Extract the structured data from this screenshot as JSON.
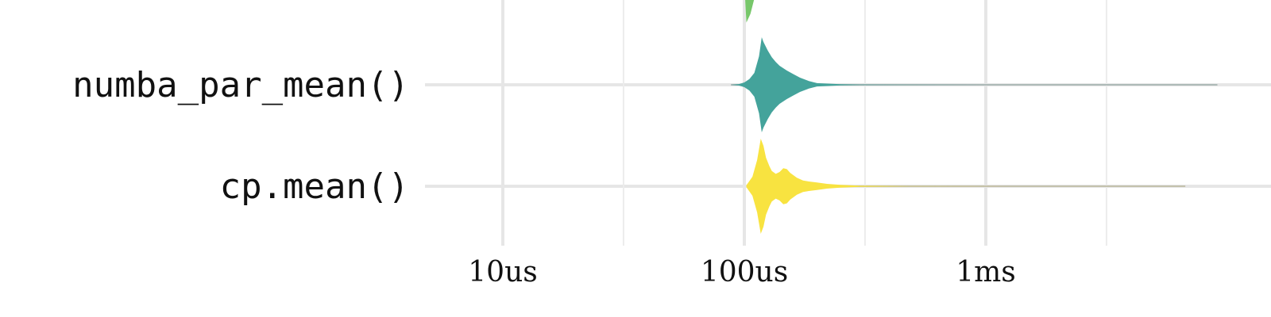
{
  "chart_data": {
    "type": "violin",
    "x_scale": "log",
    "x_unit": "s",
    "xlim": [
      3e-06,
      0.0001
    ],
    "x_ticks": [
      {
        "value": 1e-05,
        "label": "10us"
      },
      {
        "value": 0.0001,
        "label": "100us"
      },
      {
        "value": 0.001,
        "label": "1ms"
      }
    ],
    "x_minor_ticks": [
      3.16e-05,
      0.000316,
      0.00316
    ],
    "grid": true,
    "categories": [
      {
        "label": "numba_par_mean()",
        "color": "#44a39b",
        "min": 8.8e-05,
        "max": 0.0091,
        "density": [
          [
            8.8e-05,
            0.002
          ],
          [
            9.5e-05,
            0.015
          ],
          [
            0.0001,
            0.05
          ],
          [
            0.000105,
            0.12
          ],
          [
            0.00011,
            0.25
          ],
          [
            0.000115,
            0.6
          ],
          [
            0.000118,
            1.0
          ],
          [
            0.00012,
            0.9
          ],
          [
            0.000125,
            0.72
          ],
          [
            0.00013,
            0.58
          ],
          [
            0.000135,
            0.48
          ],
          [
            0.00014,
            0.4
          ],
          [
            0.00015,
            0.3
          ],
          [
            0.00016,
            0.22
          ],
          [
            0.00017,
            0.15
          ],
          [
            0.000185,
            0.08
          ],
          [
            0.0002,
            0.035
          ],
          [
            0.00025,
            0.012
          ],
          [
            0.0003,
            0.006
          ],
          [
            0.0005,
            0.003
          ],
          [
            0.001,
            0.002
          ],
          [
            0.003,
            0.0015
          ],
          [
            0.0091,
            0.001
          ]
        ]
      },
      {
        "label": "cp.mean()",
        "color": "#f8e340",
        "min": 0.000102,
        "max": 0.0067,
        "density": [
          [
            0.000102,
            0.02
          ],
          [
            0.000108,
            0.2
          ],
          [
            0.000113,
            0.55
          ],
          [
            0.000117,
            1.0
          ],
          [
            0.00012,
            0.85
          ],
          [
            0.000123,
            0.6
          ],
          [
            0.000127,
            0.42
          ],
          [
            0.00013,
            0.32
          ],
          [
            0.000135,
            0.26
          ],
          [
            0.00014,
            0.3
          ],
          [
            0.000145,
            0.38
          ],
          [
            0.00015,
            0.36
          ],
          [
            0.000155,
            0.28
          ],
          [
            0.000165,
            0.18
          ],
          [
            0.000175,
            0.12
          ],
          [
            0.000185,
            0.1
          ],
          [
            0.0002,
            0.08
          ],
          [
            0.00022,
            0.05
          ],
          [
            0.00025,
            0.03
          ],
          [
            0.0003,
            0.012
          ],
          [
            0.0005,
            0.004
          ],
          [
            0.002,
            0.002
          ],
          [
            0.0067,
            0.001
          ]
        ]
      }
    ],
    "partial_top_violin": {
      "color": "#77c76a",
      "points": [
        [
          0.0001,
          0.0
        ],
        [
          0.000102,
          0.9
        ],
        [
          0.000106,
          0.7
        ],
        [
          0.00011,
          0.35
        ],
        [
          0.000116,
          0.0
        ]
      ]
    }
  }
}
